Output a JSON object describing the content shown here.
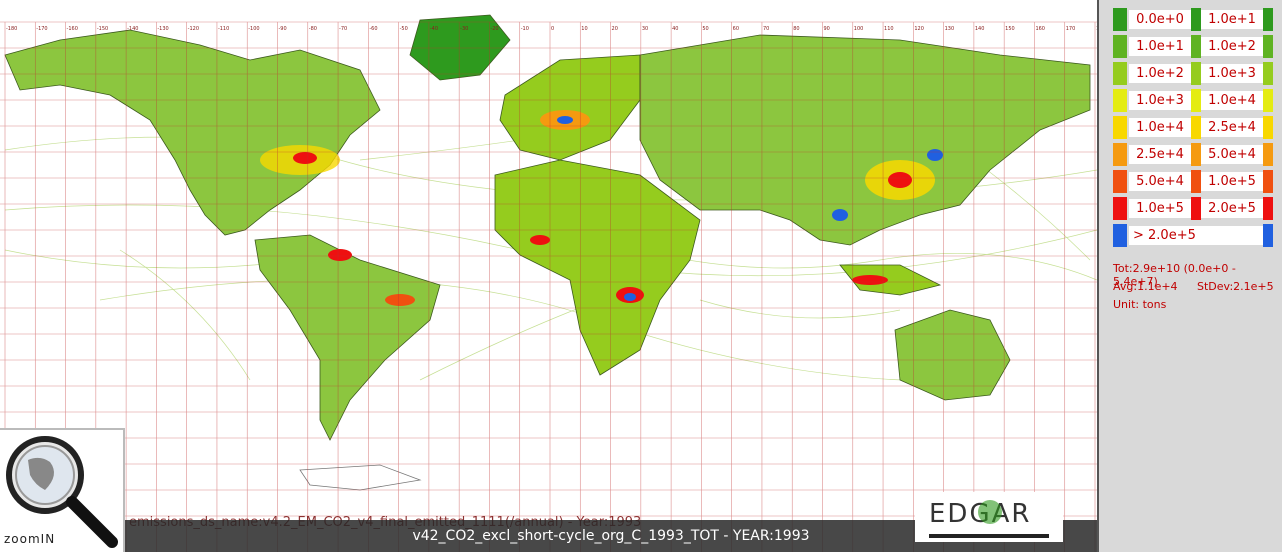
{
  "legend": {
    "rows": [
      {
        "from": "0.0e+0",
        "to": "1.0e+1",
        "color": "#2e9a1e"
      },
      {
        "from": "1.0e+1",
        "to": "1.0e+2",
        "color": "#5fb322"
      },
      {
        "from": "1.0e+2",
        "to": "1.0e+3",
        "color": "#95cc1e"
      },
      {
        "from": "1.0e+3",
        "to": "1.0e+4",
        "color": "#e4ec12"
      },
      {
        "from": "1.0e+4",
        "to": "2.5e+4",
        "color": "#f8d800"
      },
      {
        "from": "2.5e+4",
        "to": "5.0e+4",
        "color": "#f59a10"
      },
      {
        "from": "5.0e+4",
        "to": "1.0e+5",
        "color": "#f05010"
      },
      {
        "from": "1.0e+5",
        "to": "2.0e+5",
        "color": "#ee1010"
      },
      {
        "from": "> 2.0e+5",
        "to": "",
        "color": "#2060e0"
      }
    ]
  },
  "stats": {
    "total": "Tot:2.9e+10 (0.0e+0 - 5.4e+7)",
    "avg": "Avg:1.1e+4",
    "stdev": "StDev:2.1e+5",
    "unit": "Unit: tons"
  },
  "scenario_title": "v42_CO2_excl_short-cycle_org_C_1993_TOT - YEAR:1993",
  "ghost_text": "emissions_ds_name:v4.2_EM_CO2_v4_final_emitted_1111(/annual) - Year:1993",
  "zoom_label": "zoomIN",
  "logo_text": "EDGAR",
  "map_labels": {
    "lon_ticks": [
      "-180",
      "-170",
      "-160",
      "-150",
      "-140",
      "-130",
      "-120",
      "-110",
      "-100",
      "-90",
      "-80",
      "-70",
      "-60",
      "-50",
      "-40",
      "-30",
      "-20",
      "-10",
      "0",
      "10",
      "20",
      "30",
      "40",
      "50",
      "60",
      "70",
      "80",
      "90",
      "100",
      "110",
      "120",
      "130",
      "140",
      "150",
      "160",
      "170",
      "180"
    ]
  },
  "colors": {
    "grid": "#c03030",
    "land": "#8cc63f",
    "ocean": "#ffffff"
  }
}
